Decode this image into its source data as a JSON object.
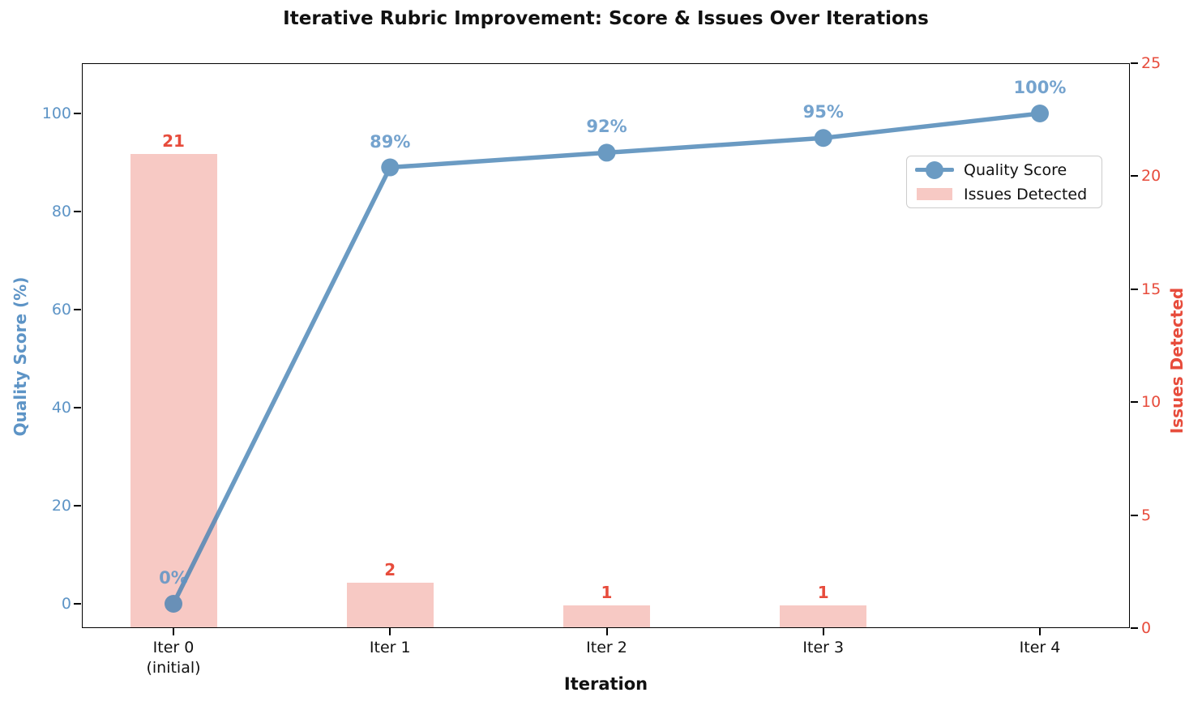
{
  "chart_data": {
    "type": "combo",
    "title": "Iterative Rubric Improvement: Score & Issues Over Iterations",
    "xlabel": "Iteration",
    "categories": [
      "Iter 0\n(initial)",
      "Iter 1",
      "Iter 2",
      "Iter 3",
      "Iter 4"
    ],
    "series": [
      {
        "name": "Quality Score",
        "type": "line",
        "axis": "left",
        "values": [
          0,
          89,
          92,
          95,
          100
        ],
        "point_labels": [
          "0%",
          "89%",
          "92%",
          "95%",
          "100%"
        ],
        "color": "#4682b4",
        "label_color": "#5d94c6"
      },
      {
        "name": "Issues Detected",
        "type": "bar",
        "axis": "right",
        "values": [
          21,
          2,
          1,
          1,
          0
        ],
        "bar_labels": [
          "21",
          "2",
          "1",
          "1",
          ""
        ],
        "color": "#f7c9c4",
        "label_color": "#e74c3c"
      }
    ],
    "left_axis": {
      "label": "Quality Score (%)",
      "ticks": [
        0,
        20,
        40,
        60,
        80,
        100
      ],
      "range": [
        0,
        100
      ],
      "color": "#5d94c6"
    },
    "right_axis": {
      "label": "Issues Detected",
      "ticks": [
        0,
        5,
        10,
        15,
        20,
        25
      ],
      "range": [
        0,
        25
      ],
      "color": "#e74c3c"
    },
    "legend": {
      "position": "upper right",
      "entries": [
        "Quality Score",
        "Issues Detected"
      ]
    },
    "grid": false
  }
}
